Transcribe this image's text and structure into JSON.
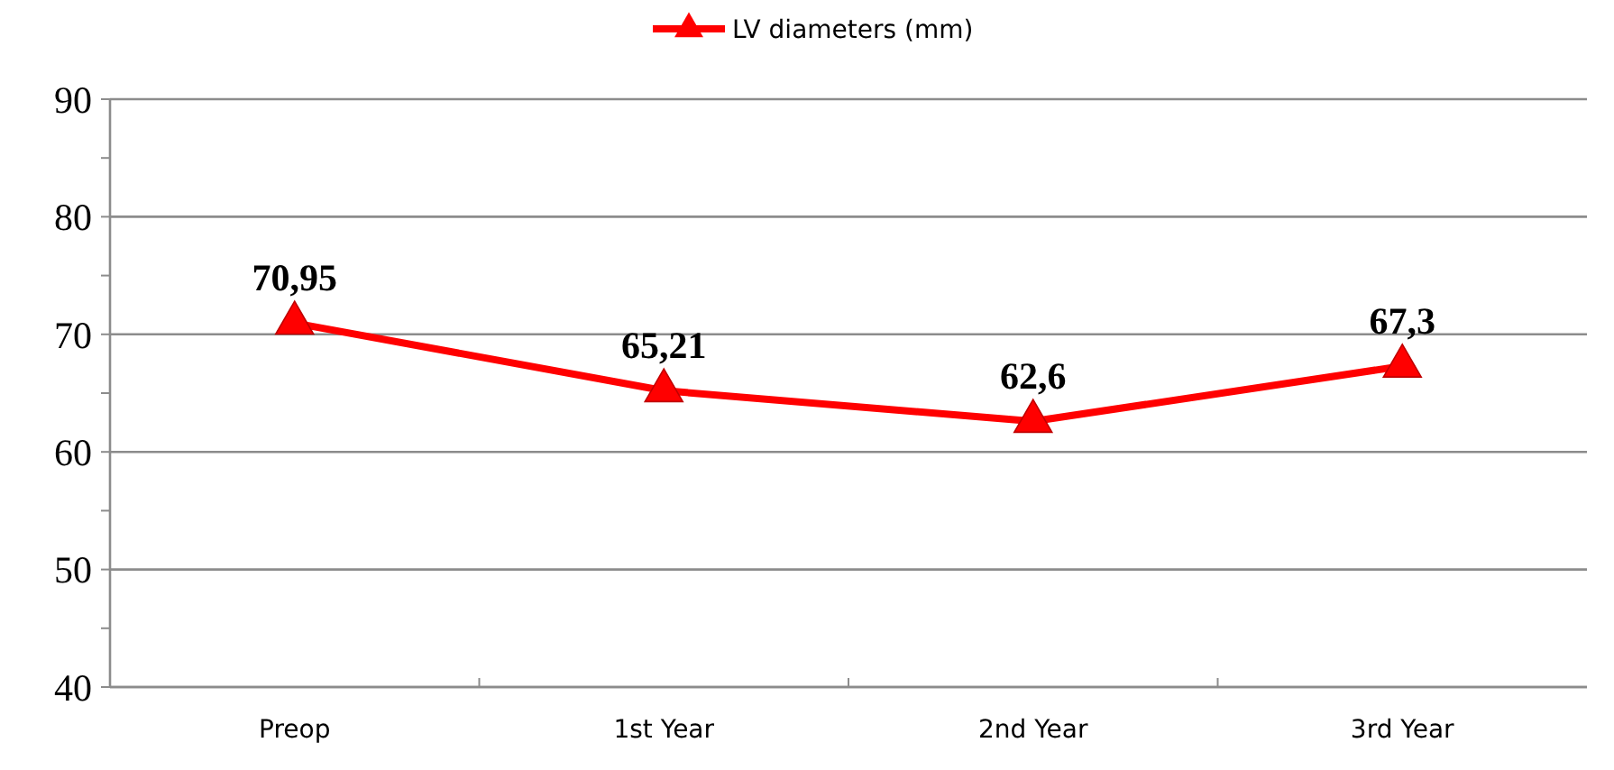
{
  "chart_data": {
    "type": "line",
    "categories": [
      "Preop",
      "1st Year",
      "2nd Year",
      "3rd Year"
    ],
    "series": [
      {
        "name": "LV diameters (mm)",
        "color": "#ff0000",
        "values": [
          70.95,
          65.21,
          62.6,
          67.3
        ],
        "value_labels": [
          "70,95",
          "65,21",
          "62,6",
          "67,3"
        ]
      }
    ],
    "ylim": [
      40,
      90
    ],
    "yticks": [
      40,
      {
        "value": 45,
        "label": null
      },
      50,
      {
        "value": 55,
        "label": null
      },
      60,
      {
        "value": 65,
        "label": null
      },
      70,
      {
        "value": 75,
        "label": null
      },
      80,
      {
        "value": 85,
        "label": null
      },
      90
    ],
    "grid": "y",
    "legend": "top",
    "marker": "triangle",
    "line_style": "solid"
  }
}
